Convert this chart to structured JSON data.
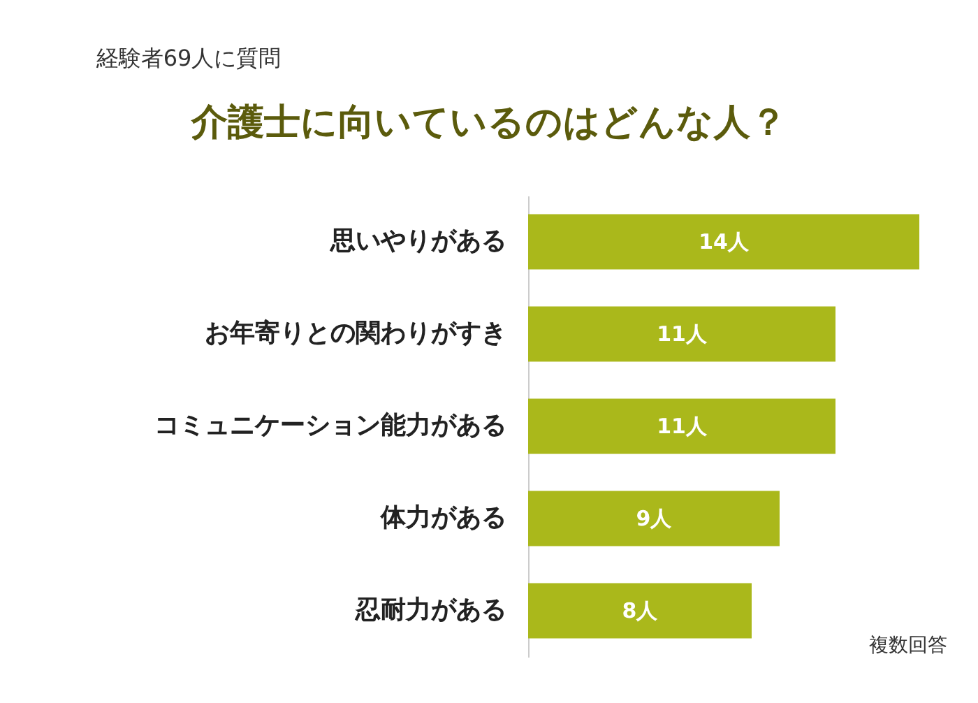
{
  "chart_data": {
    "type": "bar",
    "orientation": "horizontal",
    "subtitle": "経験者69人に質問",
    "title": "介護士に向いているのはどんな人？",
    "categories": [
      "思いやりがある",
      "お年寄りとの関わりがすき",
      "コミュニケーション能力がある",
      "体力がある",
      "忍耐力がある"
    ],
    "series": [
      {
        "color": "#aab81b",
        "values": [
          14,
          11,
          11,
          9,
          8
        ],
        "value_labels": [
          "14人",
          "11人",
          "11人",
          "9人",
          "8人"
        ]
      }
    ],
    "annotations": [
      "複数回答"
    ],
    "tick_labels": "y",
    "grid": false
  }
}
